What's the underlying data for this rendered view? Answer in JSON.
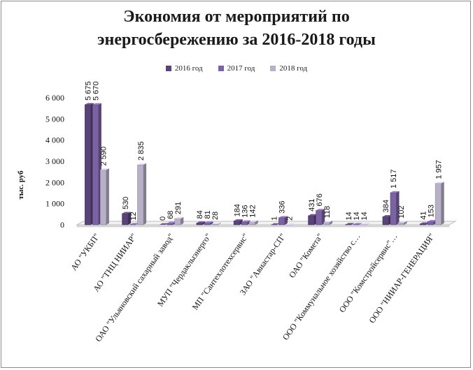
{
  "chart_data": {
    "type": "bar",
    "title_line1": "Экономия от мероприятий по",
    "title_line2": "энергосбережению за 2016-2018 годы",
    "ylabel": "тыс. руб",
    "xlabel": "",
    "ylim": [
      0,
      6000
    ],
    "yticks": [
      0,
      1000,
      2000,
      3000,
      4000,
      5000,
      6000
    ],
    "ytick_labels": [
      "0",
      "1 000",
      "2 000",
      "3 000",
      "4 000",
      "5 000",
      "6 000"
    ],
    "grid": false,
    "legend_position": "top-center",
    "categories": [
      "АО \"УКБП\"",
      "АО \"ТНЦ НИИАР\"",
      "ОАО \"Ульяновский сахарный завод\"",
      "МУП \"Чердаклыэнерго\"",
      "МП \"Сантехлотехсервис\"",
      "ЗАО \"Авиастар-СП\"",
      "ОАО \"Комета\"",
      "ООО \"Коммунальное хозяйство с…",
      "ООО \"Комстройсервис\"…",
      "ООО \"НИИАР-ГЕНЕРАЦИЯ\""
    ],
    "series": [
      {
        "name": "2016 год",
        "color": "#5a4378",
        "values": [
          5675,
          530,
          0,
          84,
          184,
          1,
          431,
          14,
          384,
          41
        ],
        "labels": [
          "5 675",
          "530",
          "0",
          "84",
          "184",
          "1",
          "431",
          "14",
          "384",
          "41"
        ]
      },
      {
        "name": "2017 год",
        "color": "#7b62a3",
        "values": [
          5670,
          12,
          68,
          81,
          136,
          336,
          676,
          14,
          1517,
          153
        ],
        "labels": [
          "5 670",
          "12",
          "68",
          "81",
          "136",
          "336",
          "676",
          "14",
          "1 517",
          "153"
        ]
      },
      {
        "name": "2018 год",
        "color": "#b8b0c8",
        "values": [
          2590,
          2835,
          291,
          28,
          142,
          2,
          118,
          14,
          102,
          1957
        ],
        "labels": [
          "2 590",
          "2 835",
          "291",
          "28",
          "142",
          "2",
          "118",
          "14",
          "102",
          "1 957"
        ]
      }
    ]
  }
}
